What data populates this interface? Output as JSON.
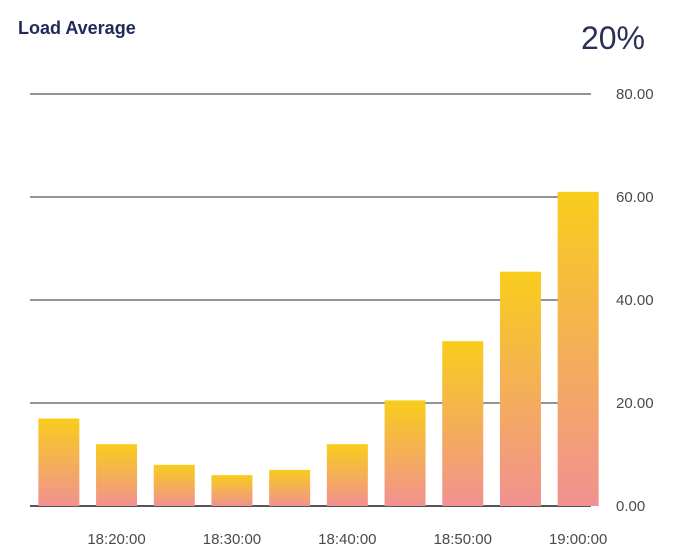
{
  "widget": {
    "title": "Load Average",
    "value": "20%"
  },
  "chart_data": {
    "type": "bar",
    "x": [
      "18:15:00",
      "18:20:00",
      "18:25:00",
      "18:30:00",
      "18:35:00",
      "18:40:00",
      "18:45:00",
      "18:50:00",
      "18:55:00",
      "19:00:00"
    ],
    "values": [
      17,
      12,
      8,
      6,
      7,
      12,
      20.5,
      32,
      45.5,
      61
    ],
    "xtick_labels": [
      "18:20:00",
      "18:30:00",
      "18:40:00",
      "18:50:00",
      "19:00:00"
    ],
    "xtick_positions": [
      "18:20:00",
      "18:30:00",
      "18:40:00",
      "18:50:00",
      "19:00:00"
    ],
    "ytick_labels": [
      "0.00",
      "20.00",
      "40.00",
      "60.00",
      "80.00"
    ],
    "ytick_values": [
      0,
      20,
      40,
      60,
      80
    ],
    "ylim": [
      0,
      80
    ],
    "grid": true,
    "colors": {
      "bar_top": "#f8cd1c",
      "bar_bottom": "#f19191",
      "grid": "#555555",
      "tick_text": "#4a4a4a"
    }
  }
}
